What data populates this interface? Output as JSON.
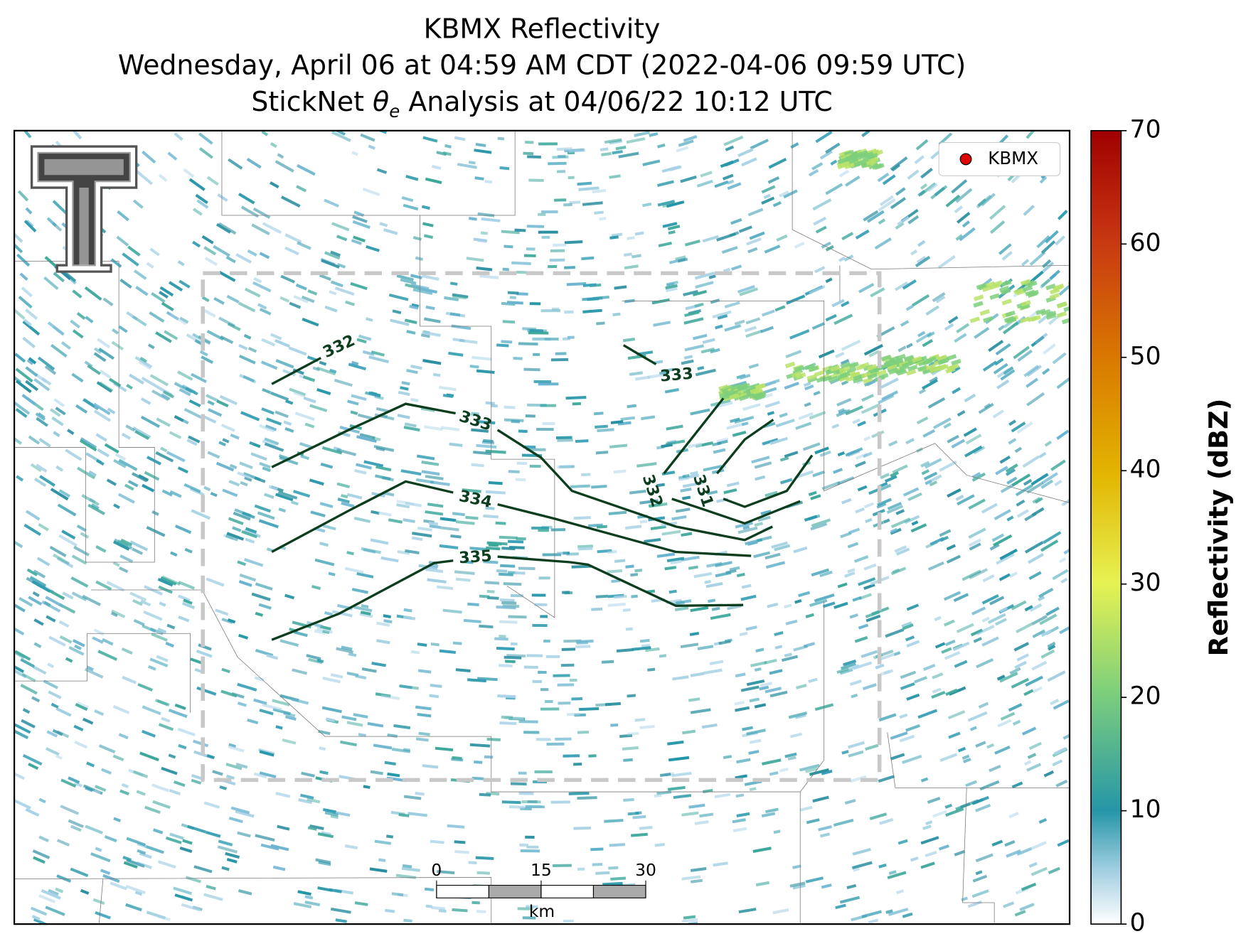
{
  "title": [
    "KBMX Reflectivity",
    "Wednesday, April 06 at 04:59 AM CDT (2022-04-06 09:59 UTC)",
    {
      "before": "StickNet ",
      "symbol": "θ",
      "subscript": "e",
      "after": " Analysis at 04/06/22 10:12 UTC"
    }
  ],
  "legend": {
    "label": "KBMX",
    "color": "#e00000"
  },
  "colorbar": {
    "label": "Reflectivity (dBZ)",
    "lim": [
      0,
      70
    ],
    "ticks": [
      0,
      10,
      20,
      30,
      40,
      50,
      60,
      70
    ]
  },
  "contours": [
    {
      "label": "332"
    },
    {
      "label": "333"
    },
    {
      "label": "334"
    },
    {
      "label": "335"
    },
    {
      "label": "333"
    },
    {
      "label": "332"
    },
    {
      "label": "331"
    }
  ],
  "scale_bar": {
    "ticks": [
      0,
      15,
      30
    ],
    "unit": "km"
  }
}
